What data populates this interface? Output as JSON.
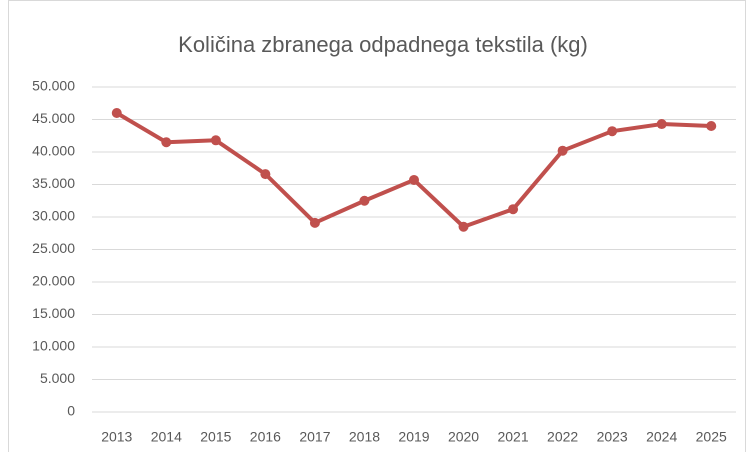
{
  "chart_data": {
    "type": "line",
    "title": "Količina zbranega odpadnega tekstila (kg)",
    "categories": [
      "2013",
      "2014",
      "2015",
      "2016",
      "2017",
      "2018",
      "2019",
      "2020",
      "2021",
      "2022",
      "2023",
      "2024",
      "2025"
    ],
    "series": [
      {
        "name": "Količina",
        "color": "#c0504d",
        "values": [
          46000,
          41500,
          41800,
          36600,
          29100,
          32500,
          35700,
          28500,
          31200,
          40200,
          43200,
          44300,
          44000
        ]
      }
    ],
    "ylim": [
      0,
      50000
    ],
    "yticks": [
      0,
      {
        "value": 5000,
        "label": "5.000"
      },
      {
        "value": 10000,
        "label": "10.000"
      },
      {
        "value": 15000,
        "label": "15.000"
      },
      {
        "value": 20000,
        "label": "20.000"
      },
      {
        "value": 25000,
        "label": "25.000"
      },
      {
        "value": 30000,
        "label": "30.000"
      },
      {
        "value": 35000,
        "label": "35.000"
      },
      {
        "value": 40000,
        "label": "40.000"
      },
      {
        "value": 45000,
        "label": "45.000"
      },
      {
        "value": 50000,
        "label": "50.000"
      }
    ],
    "grid": true
  }
}
